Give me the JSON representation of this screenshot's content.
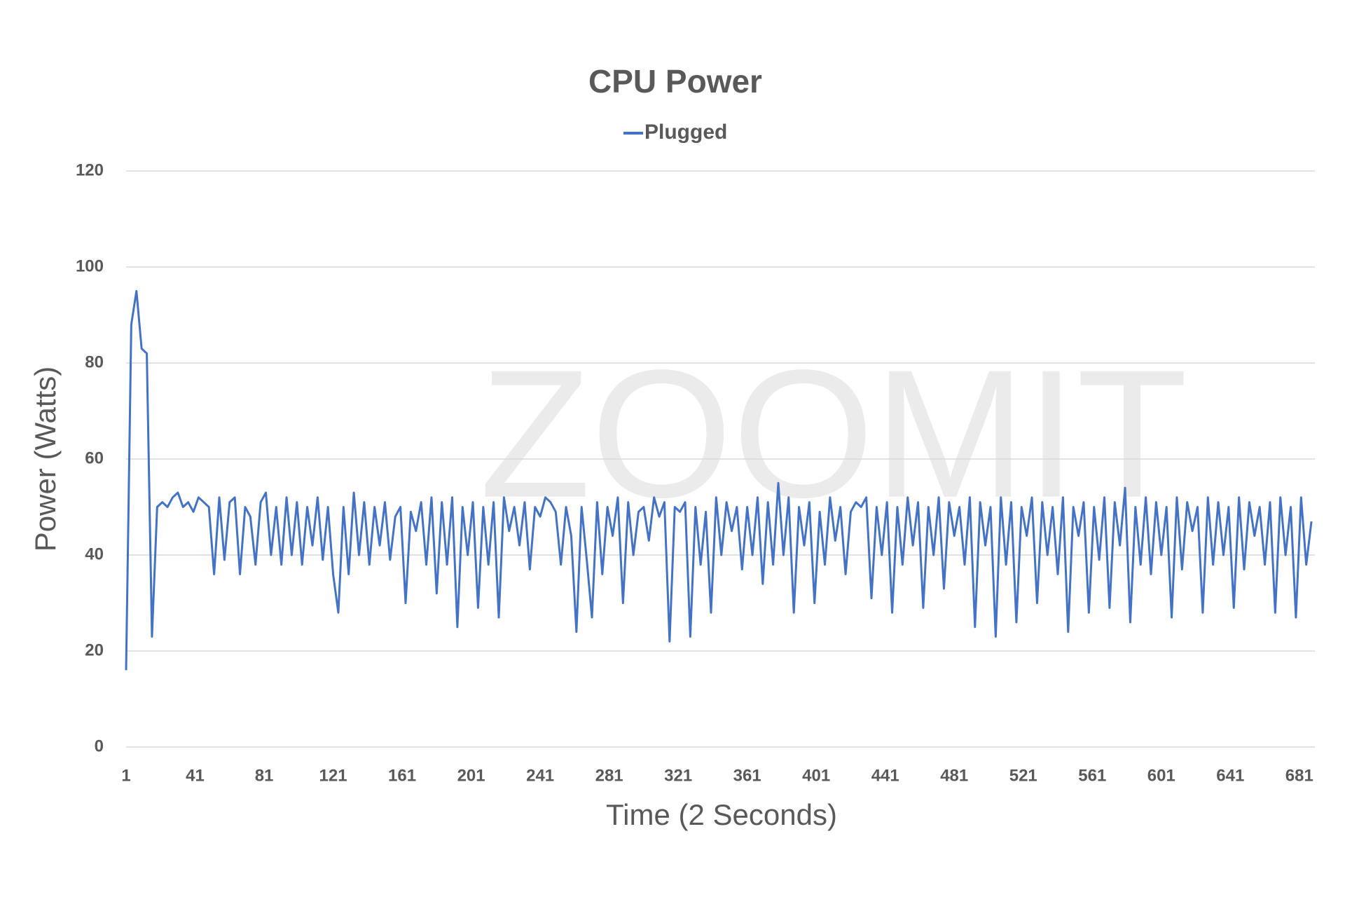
{
  "chart_data": {
    "type": "line",
    "title": "CPU Power",
    "watermark": "ZOOMIT",
    "x_label": "Time (2 Seconds)",
    "y_label": "Power (Watts)",
    "xlim": [
      1,
      690
    ],
    "xticks": [
      1,
      41,
      81,
      121,
      161,
      201,
      241,
      281,
      321,
      361,
      401,
      441,
      481,
      521,
      561,
      601,
      641,
      681
    ],
    "ylim": [
      0,
      120
    ],
    "yticks": [
      0,
      20,
      40,
      60,
      80,
      100,
      120
    ],
    "grid": true,
    "legend": "top",
    "x": [
      1,
      4,
      7,
      10,
      13,
      16,
      19,
      22,
      25,
      28,
      31,
      34,
      37,
      40,
      43,
      46,
      49,
      52,
      55,
      58,
      61,
      64,
      67,
      70,
      73,
      76,
      79,
      82,
      85,
      88,
      91,
      94,
      97,
      100,
      103,
      106,
      109,
      112,
      115,
      118,
      121,
      124,
      127,
      130,
      133,
      136,
      139,
      142,
      145,
      148,
      151,
      154,
      157,
      160,
      163,
      166,
      169,
      172,
      175,
      178,
      181,
      184,
      187,
      190,
      193,
      196,
      199,
      202,
      205,
      208,
      211,
      214,
      217,
      220,
      223,
      226,
      229,
      232,
      235,
      238,
      241,
      244,
      247,
      250,
      253,
      256,
      259,
      262,
      265,
      268,
      271,
      274,
      277,
      280,
      283,
      286,
      289,
      292,
      295,
      298,
      301,
      304,
      307,
      310,
      313,
      316,
      319,
      322,
      325,
      328,
      331,
      334,
      337,
      340,
      343,
      346,
      349,
      352,
      355,
      358,
      361,
      364,
      367,
      370,
      373,
      376,
      379,
      382,
      385,
      388,
      391,
      394,
      397,
      400,
      403,
      406,
      409,
      412,
      415,
      418,
      421,
      424,
      427,
      430,
      433,
      436,
      439,
      442,
      445,
      448,
      451,
      454,
      457,
      460,
      463,
      466,
      469,
      472,
      475,
      478,
      481,
      484,
      487,
      490,
      493,
      496,
      499,
      502,
      505,
      508,
      511,
      514,
      517,
      520,
      523,
      526,
      529,
      532,
      535,
      538,
      541,
      544,
      547,
      550,
      553,
      556,
      559,
      562,
      565,
      568,
      571,
      574,
      577,
      580,
      583,
      586,
      589,
      592,
      595,
      598,
      601,
      604,
      607,
      610,
      613,
      616,
      619,
      622,
      625,
      628,
      631,
      634,
      637,
      640,
      643,
      646,
      649,
      652,
      655,
      658,
      661,
      664,
      667,
      670,
      673,
      676,
      679,
      682,
      685,
      688
    ],
    "series": [
      {
        "name": "Plugged",
        "color": "#4472c4",
        "values": [
          16,
          88,
          95,
          83,
          82,
          23,
          50,
          51,
          50,
          52,
          53,
          50,
          51,
          49,
          52,
          51,
          50,
          36,
          52,
          39,
          51,
          52,
          36,
          50,
          48,
          38,
          51,
          53,
          40,
          50,
          38,
          52,
          40,
          51,
          38,
          50,
          42,
          52,
          39,
          50,
          36,
          28,
          50,
          36,
          53,
          40,
          51,
          38,
          50,
          42,
          51,
          39,
          48,
          50,
          30,
          49,
          45,
          51,
          38,
          52,
          32,
          51,
          38,
          52,
          25,
          50,
          40,
          51,
          29,
          50,
          38,
          51,
          27,
          52,
          45,
          50,
          42,
          51,
          37,
          50,
          48,
          52,
          51,
          49,
          38,
          50,
          44,
          24,
          50,
          39,
          27,
          51,
          36,
          50,
          44,
          52,
          30,
          51,
          40,
          49,
          50,
          43,
          52,
          48,
          51,
          22,
          50,
          49,
          51,
          23,
          50,
          38,
          49,
          28,
          52,
          40,
          51,
          45,
          50,
          37,
          50,
          40,
          52,
          34,
          51,
          38,
          55,
          40,
          52,
          28,
          50,
          42,
          51,
          30,
          49,
          38,
          52,
          43,
          50,
          36,
          49,
          51,
          50,
          52,
          31,
          50,
          40,
          51,
          28,
          50,
          38,
          52,
          42,
          51,
          29,
          50,
          40,
          52,
          33,
          51,
          44,
          50,
          38,
          52,
          25,
          51,
          42,
          50,
          23,
          52,
          38,
          51,
          26,
          50,
          44,
          52,
          30,
          51,
          40,
          50,
          36,
          52,
          24,
          50,
          44,
          51,
          28,
          50,
          39,
          52,
          29,
          51,
          42,
          54,
          26,
          50,
          38,
          52,
          36,
          51,
          40,
          50,
          27,
          52,
          37,
          51,
          45,
          50,
          28,
          52,
          38,
          51,
          40,
          50,
          29,
          52,
          37,
          51,
          44,
          50,
          38,
          51,
          28,
          52,
          40,
          50,
          27,
          52,
          38,
          47
        ]
      }
    ]
  }
}
